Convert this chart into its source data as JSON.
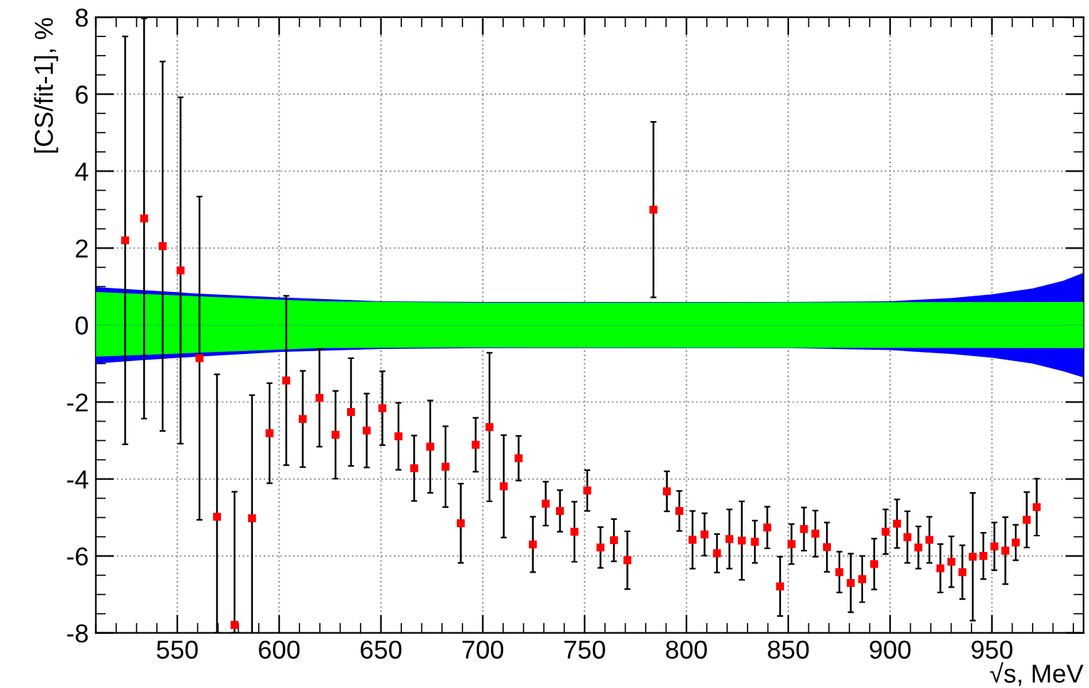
{
  "chart_data": {
    "type": "scatter",
    "xlabel": "√s, MeV",
    "ylabel": "[CS/fit-1], %",
    "xlim": [
      510,
      995
    ],
    "xticks": [
      550,
      600,
      650,
      700,
      750,
      800,
      850,
      900,
      950
    ],
    "ylim": [
      -8,
      8
    ],
    "yticks": [
      -8,
      -6,
      -4,
      -2,
      0,
      2,
      4,
      6,
      8
    ],
    "grid": true,
    "series": [
      {
        "type": "area",
        "color": "#0000ff",
        "x": [
          510,
          530,
          560,
          600,
          650,
          700,
          800,
          850,
          900,
          930,
          950,
          970,
          985,
          995
        ],
        "values": [
          0.99,
          0.92,
          0.82,
          0.72,
          0.62,
          0.6,
          0.6,
          0.6,
          0.62,
          0.7,
          0.8,
          0.95,
          1.15,
          1.36
        ]
      },
      {
        "type": "area",
        "color": "#0000ff",
        "x": [
          510,
          530,
          560,
          600,
          650,
          700,
          800,
          850,
          900,
          930,
          950,
          970,
          985,
          995
        ],
        "values": [
          -1.0,
          -0.92,
          -0.82,
          -0.7,
          -0.62,
          -0.6,
          -0.6,
          -0.6,
          -0.65,
          -0.75,
          -0.85,
          -1.0,
          -1.2,
          -1.36
        ]
      },
      {
        "type": "area",
        "color": "#00ff00",
        "x": [
          510,
          560,
          620,
          700,
          995
        ],
        "values": [
          0.86,
          0.75,
          0.62,
          0.58,
          0.6
        ]
      },
      {
        "type": "area",
        "color": "#00ff00",
        "x": [
          510,
          560,
          620,
          700,
          995
        ],
        "values": [
          -0.82,
          -0.72,
          -0.6,
          -0.58,
          -0.6
        ]
      },
      {
        "marker": "square",
        "color": "#ff0000",
        "x": [
          524.4,
          533.7,
          542.8,
          551.6,
          560.9,
          569.5,
          578.1,
          586.7,
          595.3,
          603.5,
          611.6,
          619.8,
          627.7,
          635.3,
          643.0,
          650.7,
          658.6,
          666.3,
          674.2,
          681.7,
          689.2,
          696.5,
          703.3,
          710.3,
          717.6,
          724.6,
          730.9,
          737.9,
          745.0,
          751.3,
          757.8,
          764.4,
          771.0,
          783.8,
          790.4,
          796.5,
          803.0,
          808.9,
          815.0,
          821.1,
          827.2,
          833.6,
          839.7,
          846.0,
          851.6,
          857.7,
          863.3,
          869.0,
          875.1,
          880.7,
          886.3,
          892.2,
          897.8,
          903.4,
          908.5,
          913.9,
          919.3,
          924.7,
          930.1,
          935.5,
          940.6,
          945.8,
          951.2,
          956.6,
          961.7,
          967.1,
          972.0
        ],
        "values": [
          2.2,
          2.77,
          2.05,
          1.42,
          -0.86,
          -4.98,
          -7.79,
          -5.02,
          -2.81,
          -1.44,
          -2.44,
          -1.89,
          -2.85,
          -2.26,
          -2.74,
          -2.16,
          -2.89,
          -3.72,
          -3.16,
          -3.68,
          -5.15,
          -3.11,
          -2.65,
          -4.19,
          -3.46,
          -5.7,
          -4.64,
          -4.83,
          -5.37,
          -4.3,
          -5.78,
          -5.59,
          -6.11,
          3.0,
          -4.32,
          -4.83,
          -5.58,
          -5.44,
          -5.93,
          -5.56,
          -5.6,
          -5.63,
          -5.26,
          -6.79,
          -5.69,
          -5.3,
          -5.42,
          -5.77,
          -6.42,
          -6.7,
          -6.6,
          -6.21,
          -5.37,
          -5.16,
          -5.51,
          -5.78,
          -5.58,
          -6.32,
          -6.15,
          -6.42,
          -6.02,
          -6.0,
          -5.75,
          -5.86,
          -5.65,
          -5.06,
          -4.73
        ],
        "errors": [
          5.3,
          5.2,
          4.8,
          4.5,
          4.2,
          [
            -8,
            -1.28
          ],
          [
            -8,
            -4.33
          ],
          3.2,
          1.3,
          2.2,
          1.25,
          1.27,
          1.14,
          1.4,
          0.96,
          0.96,
          0.87,
          0.85,
          1.2,
          1.05,
          1.03,
          0.7,
          1.93,
          1.33,
          0.58,
          0.72,
          0.57,
          0.54,
          0.78,
          0.53,
          0.53,
          0.55,
          0.75,
          2.28,
          0.52,
          0.52,
          0.75,
          0.55,
          0.5,
          0.77,
          1.02,
          0.55,
          0.54,
          0.77,
          0.52,
          0.56,
          0.6,
          0.64,
          0.53,
          0.76,
          0.6,
          0.66,
          0.58,
          0.63,
          0.67,
          0.55,
          0.6,
          0.63,
          0.66,
          0.7,
          1.66,
          0.6,
          0.62,
          0.87,
          0.46,
          0.72,
          0.74
        ]
      }
    ]
  }
}
